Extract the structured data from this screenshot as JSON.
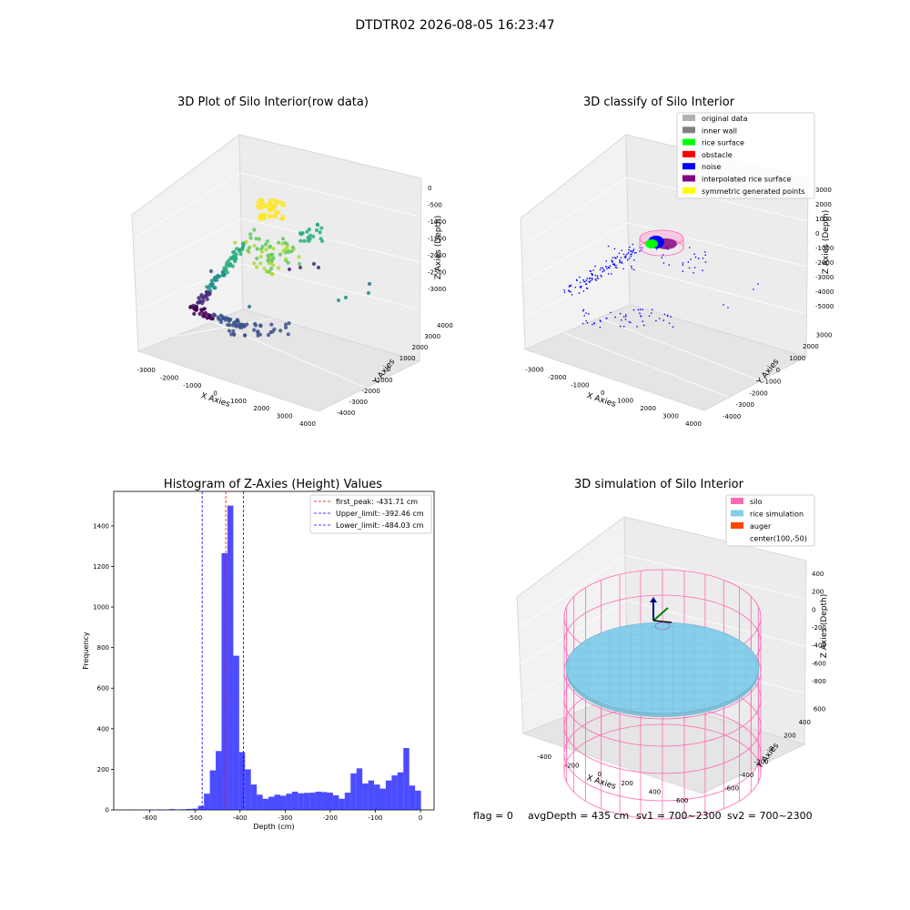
{
  "figure_title": "DTDTR02 2026-08-05 16:23:47",
  "status_line": {
    "flag": "flag = 0",
    "avg_depth": "avgDepth = 435 cm",
    "sv1": "sv1 = 700~2300",
    "sv2": "sv2 = 700~2300"
  },
  "chart_data": [
    {
      "type": "scatter",
      "projection": "3d",
      "title": "3D Plot of Silo Interior(row data)",
      "xlabel": "X Axies",
      "ylabel": "Y Axies",
      "zlabel": "Z Axies (Depth)",
      "xticks": [
        -3000,
        -2000,
        -1000,
        0,
        1000,
        2000,
        3000,
        4000
      ],
      "yticks": [
        -4000,
        -3000,
        -2000,
        -1000,
        0,
        1000,
        2000,
        3000,
        4000
      ],
      "zticks": [
        -3000,
        -2500,
        -2000,
        -1500,
        -1000,
        -500,
        0
      ],
      "xlim": [
        -3500,
        4000
      ],
      "ylim": [
        -4000,
        4000
      ],
      "zlim": [
        -3300,
        0
      ],
      "colormap": "viridis",
      "grid": true
    },
    {
      "type": "scatter",
      "projection": "3d",
      "title": "3D classify of Silo Interior",
      "xlabel": "X Axies",
      "ylabel": "Y Axies",
      "zlabel": "Z Axies (Depth)",
      "xticks": [
        -3000,
        -2000,
        -1000,
        0,
        1000,
        2000,
        3000,
        4000
      ],
      "yticks": [
        -4000,
        -3000,
        -2000,
        -1000,
        0,
        1000,
        2000,
        3000
      ],
      "zticks": [
        -5000,
        -4000,
        -3000,
        -2000,
        -1000,
        0,
        1000,
        2000,
        3000
      ],
      "xlim": [
        -3500,
        4000
      ],
      "ylim": [
        -4000,
        3500
      ],
      "zlim": [
        -5000,
        3000
      ],
      "legend_position": "top-right",
      "legend": [
        {
          "label": "original data",
          "color": "#b2b2b2"
        },
        {
          "label": "inner wall",
          "color": "#808080"
        },
        {
          "label": "rice surface",
          "color": "#00ff00"
        },
        {
          "label": "obstacle",
          "color": "#ff0000"
        },
        {
          "label": "noise",
          "color": "#0000ff"
        },
        {
          "label": "interpolated rice surface",
          "color": "#800080"
        },
        {
          "label": "symmetric generated points",
          "color": "#ffff00"
        }
      ],
      "grid": true
    },
    {
      "type": "bar",
      "title": "Histogram of Z-Axies (Height) Values",
      "xlabel": "Depth (cm)",
      "ylabel": "Frequency",
      "xlim": [
        -680,
        30
      ],
      "ylim": [
        0,
        1570
      ],
      "xticks": [
        -600,
        -500,
        -400,
        -300,
        -200,
        -100,
        0
      ],
      "yticks": [
        0,
        200,
        400,
        600,
        800,
        1000,
        1200,
        1400
      ],
      "bar_color": "#0000ff",
      "bin_edges": [
        -649,
        -636,
        -623,
        -610,
        -597,
        -584,
        -571,
        -558,
        -545,
        -532,
        -519,
        -506,
        -493,
        -480,
        -467,
        -454,
        -441,
        -428,
        -415,
        -402,
        -389,
        -376,
        -363,
        -350,
        -337,
        -324,
        -311,
        -298,
        -285,
        -272,
        -259,
        -246,
        -233,
        -220,
        -207,
        -194,
        -181,
        -168,
        -155,
        -142,
        -129,
        -116,
        -103,
        -90,
        -77,
        -64,
        -51,
        -38,
        -25,
        -12,
        1
      ],
      "values": [
        1,
        0,
        0,
        1,
        0,
        2,
        0,
        4,
        1,
        3,
        5,
        6,
        20,
        80,
        195,
        290,
        1265,
        1500,
        760,
        285,
        200,
        125,
        75,
        55,
        65,
        75,
        70,
        80,
        90,
        82,
        84,
        85,
        90,
        88,
        85,
        72,
        55,
        85,
        180,
        205,
        130,
        145,
        125,
        105,
        145,
        170,
        185,
        305,
        120,
        95
      ],
      "vlines": [
        {
          "label": "first_peak: -431.71 cm",
          "x": -431.71,
          "color": "#ff0000"
        },
        {
          "label": "Upper_limit: -392.46 cm",
          "x": -392.46,
          "color": "#0000ff"
        },
        {
          "label": "Lower_limit: -484.03 cm",
          "x": -484.03,
          "color": "#0000ff"
        }
      ],
      "legend_position": "top-right"
    },
    {
      "type": "3d-surface",
      "title": "3D simulation of Silo Interior",
      "xlabel": "X Axies",
      "ylabel": "Y Axies",
      "zlabel": "Z Axies (Depth)",
      "xticks": [
        -400,
        -200,
        0,
        200,
        400,
        600
      ],
      "yticks": [
        -600,
        -400,
        -200,
        0,
        200,
        400,
        600
      ],
      "zticks": [
        -800,
        -600,
        -400,
        -200,
        0,
        200,
        400
      ],
      "legend_position": "top-right",
      "legend": [
        {
          "label": "silo",
          "color": "#ff69b4"
        },
        {
          "label": "rice simulation",
          "color": "#87ceeb"
        },
        {
          "label": "auger",
          "color": "#ff4500"
        },
        {
          "label": "center(100,-50)",
          "color": "none"
        }
      ],
      "grid": true
    }
  ]
}
